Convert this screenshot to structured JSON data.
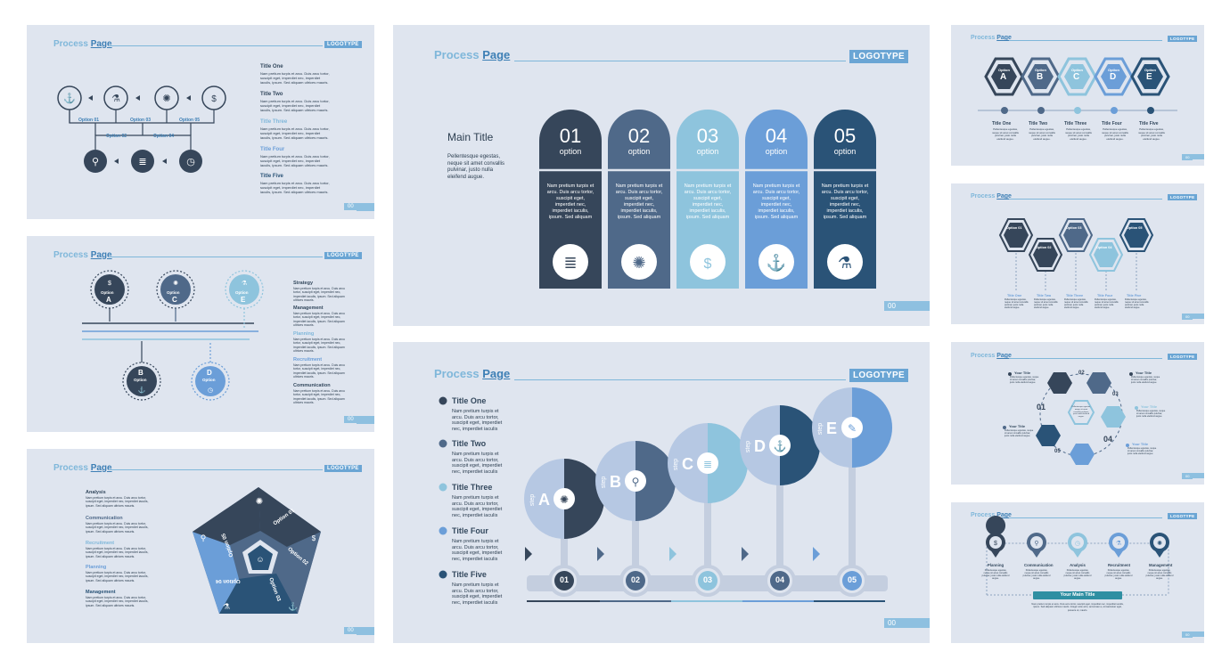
{
  "header": {
    "process": "Process",
    "page": "Page",
    "logotype": "LOGOTYPE",
    "page_num": "00"
  },
  "colors": {
    "dark": "#36465a",
    "mid": "#4f6989",
    "light": "#8ec4dd",
    "blue": "#6b9ed8",
    "navy": "#2a5377",
    "bg": "#dfe5ef"
  },
  "lorem": {
    "short": "Nam pretium turpis et arcu. Duis arcu tortor, suscipit eget, imperdiet nec, imperdiet iaculis, ipsum. Sed aliquam ultrices mauris.",
    "mid": "Pellentesque egestas, neque sit amet convallis pulvinar, justo nulla eleifend augue.",
    "col": "Nam pretium turpis et arcu. Duis arcu tortor, suscipit eget, imperdiet nec, imperdiet iaculis, ipsum. Sed aliquam",
    "list": "Nam pretium turpis et arcu. Duis arcu tortor, suscipit eget, imperdiet nec, imperdiet iaculis",
    "long": "Nam pretium turpis et arcu. Duis arcu tortor, suscipit eget, imperdiet nec, imperdiet iaculis, ipsum. Sed aliquam ultrices mauris. Integer ante arcu, accumsan a, consectetuer eget, posuere ut, mauris."
  },
  "slide1": {
    "options": [
      "Option 01",
      "Option 02",
      "Option 03",
      "Option 04",
      "Option 05"
    ],
    "titles": [
      "Title One",
      "Title Two",
      "Title Three",
      "Title Four",
      "Title Five"
    ]
  },
  "slide2": {
    "options": [
      {
        "name": "Option",
        "letter": "A"
      },
      {
        "name": "Option",
        "letter": "C"
      },
      {
        "name": "Option",
        "letter": "E"
      },
      {
        "name": "Option",
        "letter": "B"
      },
      {
        "name": "Option",
        "letter": "D"
      }
    ],
    "titles": [
      "Strategy",
      "Management",
      "Planning",
      "Recruitment",
      "Communication"
    ]
  },
  "slide3": {
    "titles": [
      "Analysis",
      "Communication",
      "Recruitment",
      "Planning",
      "Management"
    ],
    "options": [
      "Option 01",
      "Option 02",
      "Option 03",
      "Option 04",
      "Option 05"
    ]
  },
  "slide4": {
    "main_title": "Main Title",
    "columns": [
      {
        "num": "01",
        "label": "option"
      },
      {
        "num": "02",
        "label": "option"
      },
      {
        "num": "03",
        "label": "option"
      },
      {
        "num": "04",
        "label": "option"
      },
      {
        "num": "05",
        "label": "option"
      }
    ]
  },
  "slide5": {
    "titles": [
      "Title One",
      "Title Two",
      "Title Three",
      "Title Four",
      "Title Five"
    ],
    "steps": [
      {
        "word": "step",
        "letter": "A",
        "num": "01"
      },
      {
        "word": "step",
        "letter": "B",
        "num": "02"
      },
      {
        "word": "step",
        "letter": "C",
        "num": "03"
      },
      {
        "word": "step",
        "letter": "D",
        "num": "04"
      },
      {
        "word": "step",
        "letter": "E",
        "num": "05"
      }
    ]
  },
  "slide6": {
    "hex": [
      {
        "name": "Option",
        "letter": "A"
      },
      {
        "name": "Option",
        "letter": "B"
      },
      {
        "name": "Option",
        "letter": "C"
      },
      {
        "name": "Option",
        "letter": "D"
      },
      {
        "name": "Option",
        "letter": "E"
      }
    ],
    "titles": [
      "Title One",
      "Title Two",
      "Title Three",
      "Title Four",
      "Title Five"
    ]
  },
  "slide7": {
    "options": [
      "Option 01",
      "Option 02",
      "Option 03",
      "Option 04",
      "Option 05"
    ],
    "titles": [
      "Title One",
      "Title Two",
      "Title Three",
      "Title Four",
      "Title Five"
    ]
  },
  "slide8": {
    "your_title": "Your Title",
    "nums": [
      "01",
      "02",
      "03",
      "04",
      "05"
    ]
  },
  "slide9": {
    "titles": [
      "Planning",
      "Communication",
      "Analysis",
      "Recruitment",
      "Management"
    ],
    "main": "Your Main Title"
  }
}
